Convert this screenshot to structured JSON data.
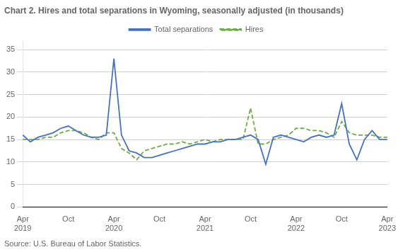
{
  "chart_data": {
    "type": "line",
    "title": "Chart 2. Hires and total separations in Wyoming, seasonally adjusted (in thousands)",
    "annotations": [
      "Source: U.S. Bureau of Labor Statistics."
    ],
    "categories": [
      "Apr\n2019",
      null,
      null,
      null,
      null,
      null,
      "Oct",
      null,
      null,
      null,
      null,
      null,
      "Apr\n2020",
      null,
      null,
      null,
      null,
      null,
      "Oct",
      null,
      null,
      null,
      null,
      null,
      "Apr\n2021",
      null,
      null,
      null,
      null,
      null,
      "Oct",
      null,
      null,
      null,
      null,
      null,
      "Apr\n2022",
      null,
      null,
      null,
      null,
      null,
      "Oct",
      null,
      null,
      null,
      null,
      null,
      "Apr\n2023"
    ],
    "series": [
      {
        "name": "Total separations",
        "color": "#4472c4",
        "line_style": "solid",
        "values": [
          16.0,
          14.5,
          15.5,
          16.0,
          16.5,
          17.5,
          18.0,
          17.0,
          16.0,
          15.5,
          15.5,
          16.0,
          33.0,
          16.0,
          12.5,
          12.0,
          11.0,
          11.0,
          11.5,
          12.0,
          12.5,
          13.0,
          13.5,
          14.0,
          14.0,
          14.5,
          14.5,
          15.0,
          15.0,
          15.5,
          16.0,
          15.0,
          9.5,
          15.5,
          16.0,
          15.5,
          15.0,
          14.5,
          15.5,
          16.0,
          15.5,
          16.0,
          23.0,
          14.0,
          10.5,
          15.0,
          17.0,
          15.0,
          15.0
        ]
      },
      {
        "name": "Hires",
        "color": "#70ad47",
        "line_style": "dashed",
        "values": [
          15.0,
          15.0,
          15.0,
          15.5,
          15.5,
          16.5,
          17.0,
          17.0,
          16.5,
          15.5,
          15.0,
          16.5,
          16.5,
          13.0,
          12.0,
          10.5,
          12.5,
          13.0,
          13.5,
          14.0,
          14.0,
          14.5,
          14.0,
          14.5,
          15.0,
          14.5,
          15.0,
          15.0,
          15.0,
          15.0,
          22.0,
          14.0,
          14.0,
          15.0,
          15.5,
          16.0,
          17.5,
          17.5,
          17.0,
          17.0,
          16.5,
          15.5,
          19.0,
          16.5,
          16.0,
          16.0,
          16.0,
          15.5,
          15.5
        ]
      }
    ],
    "ylim": [
      0,
      37
    ],
    "yticks": [
      0,
      5,
      10,
      15,
      20,
      25,
      30,
      35
    ],
    "grid": true,
    "legend": "top"
  }
}
